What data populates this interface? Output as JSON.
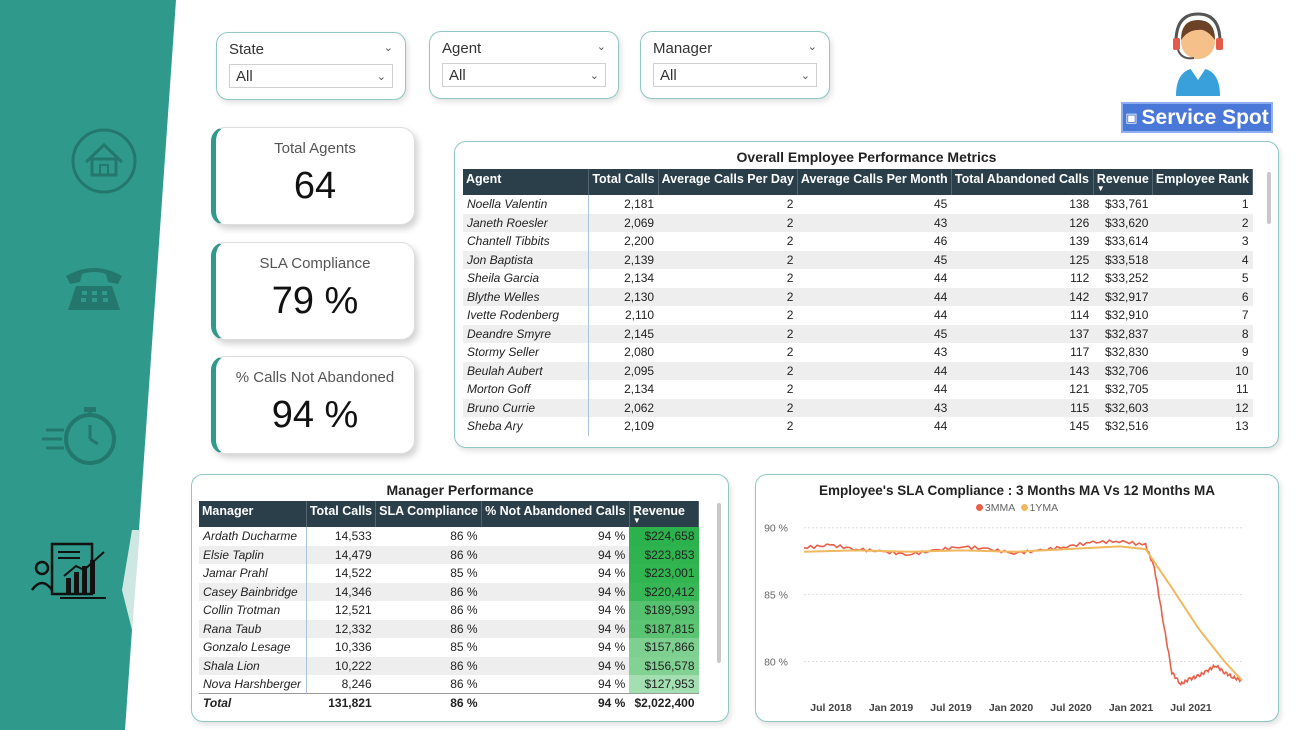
{
  "slicers": [
    {
      "title": "State",
      "value": "All"
    },
    {
      "title": "Agent",
      "value": "All"
    },
    {
      "title": "Manager",
      "value": "All"
    }
  ],
  "logo": {
    "text": "Service Spot"
  },
  "kpis": [
    {
      "label": "Total Agents",
      "value": "64"
    },
    {
      "label": "SLA Compliance",
      "value": "79 %"
    },
    {
      "label": "% Calls Not Abandoned",
      "value": "94 %"
    }
  ],
  "nav": {
    "items": [
      {
        "icon": "home-icon"
      },
      {
        "icon": "telephone-icon"
      },
      {
        "icon": "stopwatch-icon"
      },
      {
        "icon": "performance-report-icon"
      }
    ],
    "accent": "#2f9a8b"
  },
  "employee_table": {
    "title": "Overall Employee Performance Metrics",
    "columns": [
      "Agent",
      "Total Calls",
      "Average Calls Per Day",
      "Average Calls Per Month",
      "Total Abandoned Calls",
      "Revenue",
      "Employee Rank"
    ],
    "rows": [
      [
        "Noella Valentin",
        "2,181",
        "2",
        "45",
        "138",
        "$33,761",
        "1"
      ],
      [
        "Janeth Roesler",
        "2,069",
        "2",
        "43",
        "126",
        "$33,620",
        "2"
      ],
      [
        "Chantell Tibbits",
        "2,200",
        "2",
        "46",
        "139",
        "$33,614",
        "3"
      ],
      [
        "Jon Baptista",
        "2,139",
        "2",
        "45",
        "125",
        "$33,518",
        "4"
      ],
      [
        "Sheila Garcia",
        "2,134",
        "2",
        "44",
        "112",
        "$33,252",
        "5"
      ],
      [
        "Blythe Welles",
        "2,130",
        "2",
        "44",
        "142",
        "$32,917",
        "6"
      ],
      [
        "Ivette Rodenberg",
        "2,110",
        "2",
        "44",
        "114",
        "$32,910",
        "7"
      ],
      [
        "Deandre Smyre",
        "2,145",
        "2",
        "45",
        "137",
        "$32,837",
        "8"
      ],
      [
        "Stormy Seller",
        "2,080",
        "2",
        "43",
        "117",
        "$32,830",
        "9"
      ],
      [
        "Beulah Aubert",
        "2,095",
        "2",
        "44",
        "143",
        "$32,706",
        "10"
      ],
      [
        "Morton Goff",
        "2,134",
        "2",
        "44",
        "121",
        "$32,705",
        "11"
      ],
      [
        "Bruno Currie",
        "2,062",
        "2",
        "43",
        "115",
        "$32,603",
        "12"
      ],
      [
        "Sheba Ary",
        "2,109",
        "2",
        "44",
        "145",
        "$32,516",
        "13"
      ]
    ]
  },
  "manager_table": {
    "title": "Manager Performance",
    "columns": [
      "Manager",
      "Total Calls",
      "SLA Compliance",
      "% Not Abandoned Calls",
      "Revenue"
    ],
    "rows": [
      {
        "cells": [
          "Ardath Ducharme",
          "14,533",
          "86 %",
          "94 %",
          "$224,658"
        ],
        "color": "#2bb24c"
      },
      {
        "cells": [
          "Elsie Taplin",
          "14,479",
          "86 %",
          "94 %",
          "$223,853"
        ],
        "color": "#2eb34e"
      },
      {
        "cells": [
          "Jamar Prahl",
          "14,522",
          "85 %",
          "94 %",
          "$223,001"
        ],
        "color": "#31b551"
      },
      {
        "cells": [
          "Casey Bainbridge",
          "14,346",
          "86 %",
          "94 %",
          "$220,412"
        ],
        "color": "#37b755"
      },
      {
        "cells": [
          "Collin Trotman",
          "12,521",
          "86 %",
          "94 %",
          "$189,593"
        ],
        "color": "#56c26f"
      },
      {
        "cells": [
          "Rana Taub",
          "12,332",
          "86 %",
          "94 %",
          "$187,815"
        ],
        "color": "#5bc473"
      },
      {
        "cells": [
          "Gonzalo Lesage",
          "10,336",
          "85 %",
          "94 %",
          "$157,866"
        ],
        "color": "#7dd090"
      },
      {
        "cells": [
          "Shala Lion",
          "10,222",
          "86 %",
          "94 %",
          "$156,578"
        ],
        "color": "#82d294"
      },
      {
        "cells": [
          "Nova Harshberger",
          "8,246",
          "86 %",
          "94 %",
          "$127,953"
        ],
        "color": "#a3dfb0"
      }
    ],
    "total": [
      "Total",
      "131,821",
      "86 %",
      "94 %",
      "$2,022,400"
    ]
  },
  "chart_data": {
    "type": "line",
    "title": "Employee's SLA Compliance : 3 Months MA Vs 12 Months MA",
    "series": [
      {
        "name": "3MMA",
        "color": "#e8604a",
        "points": [
          [
            0,
            88.5
          ],
          [
            3,
            88.7
          ],
          [
            6,
            88.4
          ],
          [
            9,
            88.2
          ],
          [
            12,
            88.0
          ],
          [
            15,
            88.3
          ],
          [
            18,
            88.6
          ],
          [
            21,
            88.4
          ],
          [
            24,
            88.1
          ],
          [
            27,
            88.3
          ],
          [
            30,
            88.6
          ],
          [
            33,
            88.9
          ],
          [
            36,
            89.0
          ],
          [
            39,
            88.7
          ],
          [
            40,
            87.0
          ],
          [
            41,
            83.0
          ],
          [
            42,
            79.2
          ],
          [
            43,
            78.3
          ],
          [
            44,
            78.7
          ],
          [
            45,
            78.9
          ],
          [
            46,
            79.3
          ],
          [
            47,
            79.7
          ],
          [
            48,
            79.2
          ],
          [
            49,
            78.8
          ],
          [
            50,
            78.6
          ]
        ]
      },
      {
        "name": "1YMA",
        "color": "#f0b960",
        "points": [
          [
            0,
            88.2
          ],
          [
            6,
            88.3
          ],
          [
            12,
            88.2
          ],
          [
            18,
            88.3
          ],
          [
            24,
            88.2
          ],
          [
            30,
            88.4
          ],
          [
            36,
            88.6
          ],
          [
            39,
            88.4
          ],
          [
            42,
            85.5
          ],
          [
            45,
            82.5
          ],
          [
            48,
            80.0
          ],
          [
            50,
            78.6
          ]
        ]
      }
    ],
    "ylim": [
      77.5,
      90.5
    ],
    "y_ticks": [
      "90 %",
      "85 %",
      "80 %"
    ],
    "x_ticks": [
      "Jul 2018",
      "Jan 2019",
      "Jul 2019",
      "Jan 2020",
      "Jul 2020",
      "Jan 2021",
      "Jul 2021"
    ]
  }
}
